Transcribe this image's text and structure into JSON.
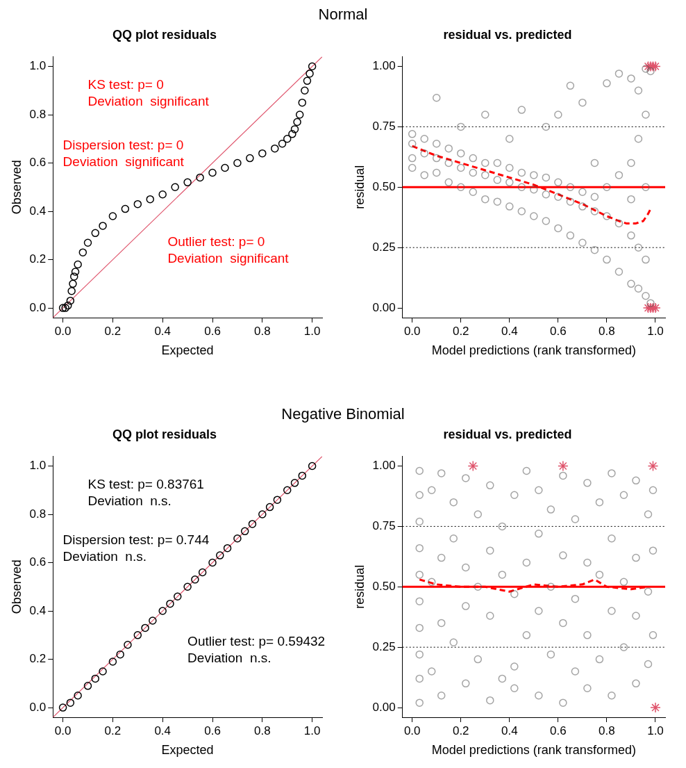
{
  "chart_data": [
    {
      "type": "scatter",
      "subtitle": "Normal",
      "title": "QQ plot residuals",
      "xlabel": "Expected",
      "ylabel": "Observed",
      "xlim": [
        -0.04,
        1.04
      ],
      "ylim": [
        -0.04,
        1.04
      ],
      "xticks": [
        {
          "value": 0,
          "label": "0.0"
        },
        {
          "value": 0.2,
          "label": "0.2"
        },
        {
          "value": 0.4,
          "label": "0.4"
        },
        {
          "value": 0.6,
          "label": "0.6"
        },
        {
          "value": 0.8,
          "label": "0.8"
        },
        {
          "value": 1,
          "label": "1.0"
        }
      ],
      "yticks": [
        {
          "value": 0,
          "label": "0.0"
        },
        {
          "value": 0.2,
          "label": "0.2"
        },
        {
          "value": 0.4,
          "label": "0.4"
        },
        {
          "value": 0.6,
          "label": "0.6"
        },
        {
          "value": 0.8,
          "label": "0.8"
        },
        {
          "value": 1,
          "label": "1.0"
        }
      ],
      "marker": "circle",
      "series": [
        {
          "type": "scatter",
          "color": "#000000",
          "x": [
            0,
            0.01,
            0.02,
            0.03,
            0.035,
            0.04,
            0.045,
            0.05,
            0.06,
            0.08,
            0.1,
            0.13,
            0.16,
            0.2,
            0.25,
            0.3,
            0.35,
            0.4,
            0.45,
            0.5,
            0.55,
            0.6,
            0.65,
            0.7,
            0.75,
            0.8,
            0.85,
            0.88,
            0.9,
            0.92,
            0.93,
            0.94,
            0.95,
            0.96,
            0.97,
            0.98,
            0.99,
            1
          ],
          "values": [
            0,
            0,
            0.01,
            0.03,
            0.07,
            0.1,
            0.13,
            0.15,
            0.18,
            0.23,
            0.27,
            0.31,
            0.34,
            0.38,
            0.41,
            0.43,
            0.45,
            0.47,
            0.5,
            0.52,
            0.54,
            0.56,
            0.58,
            0.6,
            0.62,
            0.64,
            0.66,
            0.68,
            0.7,
            0.72,
            0.74,
            0.77,
            0.8,
            0.85,
            0.9,
            0.94,
            0.97,
            1
          ]
        },
        {
          "type": "line",
          "color": "#df536b",
          "marker": "none",
          "x": [
            -0.04,
            1.04
          ],
          "values": [
            -0.04,
            1.04
          ]
        }
      ],
      "annotations": [
        "KS test: p= 0\nDeviation  significant",
        "Dispersion test: p= 0\nDeviation  significant",
        "Outlier test: p= 0\nDeviation  significant"
      ]
    },
    {
      "type": "scatter",
      "title": "residual vs. predicted",
      "xlabel": "Model predictions (rank transformed)",
      "ylabel": "residual",
      "xlim": [
        -0.04,
        1.04
      ],
      "ylim": [
        -0.04,
        1.04
      ],
      "xticks": [
        {
          "value": 0,
          "label": "0.0"
        },
        {
          "value": 0.2,
          "label": "0.2"
        },
        {
          "value": 0.4,
          "label": "0.4"
        },
        {
          "value": 0.6,
          "label": "0.6"
        },
        {
          "value": 0.8,
          "label": "0.8"
        },
        {
          "value": 1,
          "label": "1.0"
        }
      ],
      "yticks": [
        {
          "value": 0,
          "label": "0.00"
        },
        {
          "value": 0.25,
          "label": "0.25"
        },
        {
          "value": 0.5,
          "label": "0.50"
        },
        {
          "value": 0.75,
          "label": "0.75"
        },
        {
          "value": 1,
          "label": "1.00"
        }
      ],
      "marker": "circle",
      "series": [
        {
          "type": "scatter",
          "color": "#555555",
          "x": [
            0,
            0,
            0,
            0,
            0.05,
            0.05,
            0.05,
            0.1,
            0.1,
            0.1,
            0.1,
            0.15,
            0.15,
            0.15,
            0.2,
            0.2,
            0.2,
            0.2,
            0.25,
            0.25,
            0.25,
            0.3,
            0.3,
            0.3,
            0.3,
            0.35,
            0.35,
            0.35,
            0.4,
            0.4,
            0.4,
            0.4,
            0.45,
            0.45,
            0.45,
            0.45,
            0.5,
            0.5,
            0.5,
            0.55,
            0.55,
            0.55,
            0.55,
            0.6,
            0.6,
            0.6,
            0.6,
            0.65,
            0.65,
            0.65,
            0.65,
            0.7,
            0.7,
            0.7,
            0.7,
            0.75,
            0.75,
            0.75,
            0.75,
            0.8,
            0.8,
            0.8,
            0.8,
            0.85,
            0.85,
            0.85,
            0.85,
            0.9,
            0.9,
            0.9,
            0.9,
            0.9,
            0.93,
            0.93,
            0.93,
            0.93,
            0.96,
            0.96,
            0.96,
            0.96,
            0.96,
            0.98,
            0.98
          ],
          "values": [
            0.68,
            0.62,
            0.72,
            0.58,
            0.64,
            0.7,
            0.55,
            0.62,
            0.68,
            0.56,
            0.87,
            0.6,
            0.66,
            0.52,
            0.58,
            0.64,
            0.5,
            0.75,
            0.56,
            0.62,
            0.48,
            0.55,
            0.6,
            0.45,
            0.8,
            0.53,
            0.6,
            0.44,
            0.52,
            0.58,
            0.42,
            0.7,
            0.5,
            0.56,
            0.4,
            0.82,
            0.49,
            0.55,
            0.38,
            0.47,
            0.54,
            0.36,
            0.75,
            0.46,
            0.52,
            0.33,
            0.8,
            0.44,
            0.5,
            0.3,
            0.92,
            0.42,
            0.48,
            0.27,
            0.85,
            0.4,
            0.46,
            0.24,
            0.6,
            0.38,
            0.2,
            0.5,
            0.93,
            0.35,
            0.15,
            0.55,
            0.97,
            0.3,
            0.1,
            0.6,
            0.95,
            0.45,
            0.08,
            0.25,
            0.7,
            0.9,
            0.05,
            0.2,
            0.5,
            0.8,
            0.99,
            0.02,
            0.98
          ]
        },
        {
          "type": "line",
          "color": "#ff0000",
          "marker": "none",
          "line_style": "dashed",
          "x": [
            0,
            0.1,
            0.2,
            0.3,
            0.4,
            0.5,
            0.6,
            0.7,
            0.8,
            0.85,
            0.88,
            0.92,
            0.95,
            0.97,
            0.98
          ],
          "values": [
            0.67,
            0.63,
            0.6,
            0.57,
            0.54,
            0.51,
            0.47,
            0.43,
            0.38,
            0.36,
            0.35,
            0.35,
            0.36,
            0.39,
            0.41
          ]
        },
        {
          "type": "scatter",
          "color": "#df536b",
          "marker": "cross",
          "x": [
            0.97,
            0.98,
            0.99,
            1,
            0.97,
            0.98,
            0.99,
            1
          ],
          "values": [
            1,
            1,
            1,
            1,
            0,
            0,
            0,
            0
          ]
        }
      ],
      "ref_lines": [
        {
          "axis": "y",
          "value": 0.5,
          "color": "#ff0000",
          "line_style": "solid"
        },
        {
          "axis": "y",
          "value": 0.25,
          "color": "#000000",
          "line_style": "dotted"
        },
        {
          "axis": "y",
          "value": 0.75,
          "color": "#000000",
          "line_style": "dotted"
        }
      ]
    },
    {
      "type": "scatter",
      "subtitle": "Negative Binomial",
      "title": "QQ plot residuals",
      "xlabel": "Expected",
      "ylabel": "Observed",
      "xlim": [
        -0.04,
        1.04
      ],
      "ylim": [
        -0.04,
        1.04
      ],
      "xticks": [
        {
          "value": 0,
          "label": "0.0"
        },
        {
          "value": 0.2,
          "label": "0.2"
        },
        {
          "value": 0.4,
          "label": "0.4"
        },
        {
          "value": 0.6,
          "label": "0.6"
        },
        {
          "value": 0.8,
          "label": "0.8"
        },
        {
          "value": 1,
          "label": "1.0"
        }
      ],
      "yticks": [
        {
          "value": 0,
          "label": "0.0"
        },
        {
          "value": 0.2,
          "label": "0.2"
        },
        {
          "value": 0.4,
          "label": "0.4"
        },
        {
          "value": 0.6,
          "label": "0.6"
        },
        {
          "value": 0.8,
          "label": "0.8"
        },
        {
          "value": 1,
          "label": "1.0"
        }
      ],
      "marker": "circle",
      "series": [
        {
          "type": "scatter",
          "color": "#000000",
          "x": [
            0,
            0.03,
            0.06,
            0.1,
            0.13,
            0.16,
            0.2,
            0.23,
            0.26,
            0.3,
            0.33,
            0.36,
            0.4,
            0.43,
            0.46,
            0.5,
            0.53,
            0.56,
            0.6,
            0.63,
            0.66,
            0.7,
            0.73,
            0.76,
            0.8,
            0.83,
            0.86,
            0.9,
            0.93,
            0.96,
            1
          ],
          "values": [
            0,
            0.02,
            0.05,
            0.09,
            0.12,
            0.15,
            0.19,
            0.22,
            0.26,
            0.3,
            0.33,
            0.36,
            0.4,
            0.43,
            0.46,
            0.5,
            0.53,
            0.56,
            0.6,
            0.63,
            0.66,
            0.7,
            0.73,
            0.76,
            0.8,
            0.83,
            0.86,
            0.9,
            0.93,
            0.96,
            1
          ]
        },
        {
          "type": "line",
          "color": "#df536b",
          "marker": "none",
          "x": [
            -0.04,
            1.04
          ],
          "values": [
            -0.04,
            1.04
          ]
        }
      ],
      "annotations": [
        "KS test: p= 0.83761\nDeviation  n.s.",
        "Dispersion test: p= 0.744\nDeviation  n.s.",
        "Outlier test: p= 0.59432\nDeviation  n.s."
      ]
    },
    {
      "type": "scatter",
      "title": "residual vs. predicted",
      "xlabel": "Model predictions (rank transformed)",
      "ylabel": "residual",
      "xlim": [
        -0.04,
        1.04
      ],
      "ylim": [
        -0.04,
        1.04
      ],
      "xticks": [
        {
          "value": 0,
          "label": "0.0"
        },
        {
          "value": 0.2,
          "label": "0.2"
        },
        {
          "value": 0.4,
          "label": "0.4"
        },
        {
          "value": 0.6,
          "label": "0.6"
        },
        {
          "value": 0.8,
          "label": "0.8"
        },
        {
          "value": 1,
          "label": "1.0"
        }
      ],
      "yticks": [
        {
          "value": 0,
          "label": "0.00"
        },
        {
          "value": 0.25,
          "label": "0.25"
        },
        {
          "value": 0.5,
          "label": "0.50"
        },
        {
          "value": 0.75,
          "label": "0.75"
        },
        {
          "value": 1,
          "label": "1.00"
        }
      ],
      "marker": "circle",
      "series": [
        {
          "type": "scatter",
          "color": "#555555",
          "x": [
            0.03,
            0.03,
            0.03,
            0.03,
            0.03,
            0.03,
            0.03,
            0.03,
            0.03,
            0.03,
            0.08,
            0.08,
            0.08,
            0.12,
            0.12,
            0.12,
            0.12,
            0.17,
            0.17,
            0.17,
            0.22,
            0.22,
            0.22,
            0.22,
            0.27,
            0.27,
            0.27,
            0.32,
            0.32,
            0.32,
            0.32,
            0.37,
            0.37,
            0.37,
            0.42,
            0.42,
            0.42,
            0.42,
            0.47,
            0.47,
            0.47,
            0.52,
            0.52,
            0.52,
            0.52,
            0.57,
            0.57,
            0.57,
            0.62,
            0.62,
            0.62,
            0.62,
            0.67,
            0.67,
            0.67,
            0.72,
            0.72,
            0.72,
            0.72,
            0.77,
            0.77,
            0.77,
            0.82,
            0.82,
            0.82,
            0.82,
            0.87,
            0.87,
            0.87,
            0.92,
            0.92,
            0.92,
            0.92,
            0.97,
            0.97,
            0.97,
            0.99,
            0.99,
            0.99
          ],
          "values": [
            0.02,
            0.12,
            0.22,
            0.33,
            0.44,
            0.55,
            0.66,
            0.77,
            0.88,
            0.98,
            0.15,
            0.52,
            0.9,
            0.05,
            0.35,
            0.62,
            0.97,
            0.27,
            0.7,
            0.85,
            0.1,
            0.42,
            0.58,
            0.95,
            0.2,
            0.5,
            0.8,
            0.03,
            0.38,
            0.65,
            0.92,
            0.12,
            0.55,
            0.75,
            0.08,
            0.17,
            0.47,
            0.88,
            0.3,
            0.6,
            0.98,
            0.05,
            0.4,
            0.72,
            0.9,
            0.22,
            0.5,
            0.82,
            0.02,
            0.35,
            0.63,
            0.96,
            0.15,
            0.45,
            0.78,
            0.08,
            0.3,
            0.6,
            0.93,
            0.2,
            0.55,
            0.85,
            0.05,
            0.4,
            0.7,
            0.97,
            0.25,
            0.52,
            0.88,
            0.1,
            0.38,
            0.62,
            0.94,
            0.18,
            0.48,
            0.8,
            0.3,
            0.65,
            0.9
          ]
        },
        {
          "type": "line",
          "color": "#ff0000",
          "marker": "none",
          "line_style": "dashed",
          "x": [
            0.03,
            0.1,
            0.2,
            0.3,
            0.4,
            0.5,
            0.6,
            0.7,
            0.75,
            0.8,
            0.9,
            0.97
          ],
          "values": [
            0.53,
            0.51,
            0.5,
            0.5,
            0.48,
            0.51,
            0.5,
            0.51,
            0.53,
            0.5,
            0.49,
            0.5
          ]
        },
        {
          "type": "scatter",
          "color": "#df536b",
          "marker": "cross",
          "x": [
            0.25,
            0.62,
            0.99,
            1
          ],
          "values": [
            1,
            1,
            1,
            0
          ]
        }
      ],
      "ref_lines": [
        {
          "axis": "y",
          "value": 0.5,
          "color": "#ff0000",
          "line_style": "solid"
        },
        {
          "axis": "y",
          "value": 0.25,
          "color": "#000000",
          "line_style": "dotted"
        },
        {
          "axis": "y",
          "value": 0.75,
          "color": "#000000",
          "line_style": "dotted"
        }
      ]
    }
  ]
}
